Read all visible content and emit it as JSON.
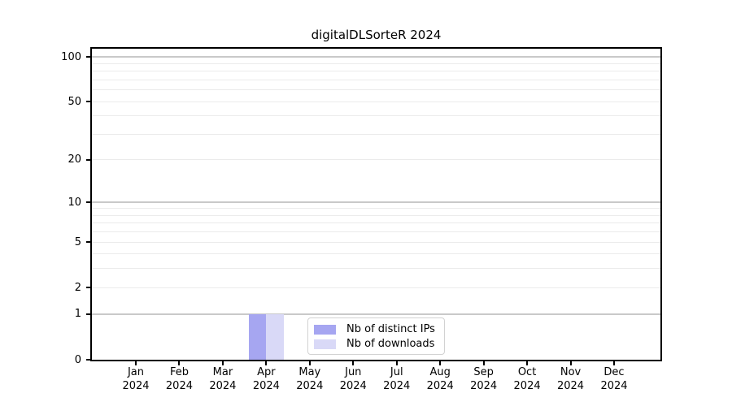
{
  "chart_data": {
    "type": "bar",
    "title": "digitalDLSorteR 2024",
    "xlabel": "",
    "ylabel": "",
    "year": "2024",
    "categories": [
      "Jan",
      "Feb",
      "Mar",
      "Apr",
      "May",
      "Jun",
      "Jul",
      "Aug",
      "Sep",
      "Oct",
      "Nov",
      "Dec"
    ],
    "series": [
      {
        "name": "Nb of distinct IPs",
        "color": "#a6a6f1",
        "values": [
          0,
          0,
          0,
          1,
          0,
          0,
          0,
          0,
          0,
          0,
          0,
          0
        ]
      },
      {
        "name": "Nb of downloads",
        "color": "#d9d9f7",
        "values": [
          0,
          0,
          0,
          1,
          0,
          0,
          0,
          0,
          0,
          0,
          0,
          0
        ]
      }
    ],
    "yscale": "log1p",
    "ylim": [
      0,
      113
    ],
    "y_ticks": [
      0,
      1,
      2,
      5,
      10,
      20,
      50,
      100
    ],
    "major_gridlines": [
      1,
      10,
      100
    ],
    "minor_gridlines": [
      2,
      3,
      4,
      5,
      6,
      7,
      8,
      9,
      20,
      30,
      40,
      50,
      60,
      70,
      80,
      90
    ],
    "grid": "on",
    "legend_position": "lower center"
  },
  "colors": {
    "spine": "#000000",
    "grid_minor": "#ebebeb",
    "grid_major": "#c9c9c9",
    "background": "#ffffff",
    "legend_border": "#d2d2d2"
  }
}
